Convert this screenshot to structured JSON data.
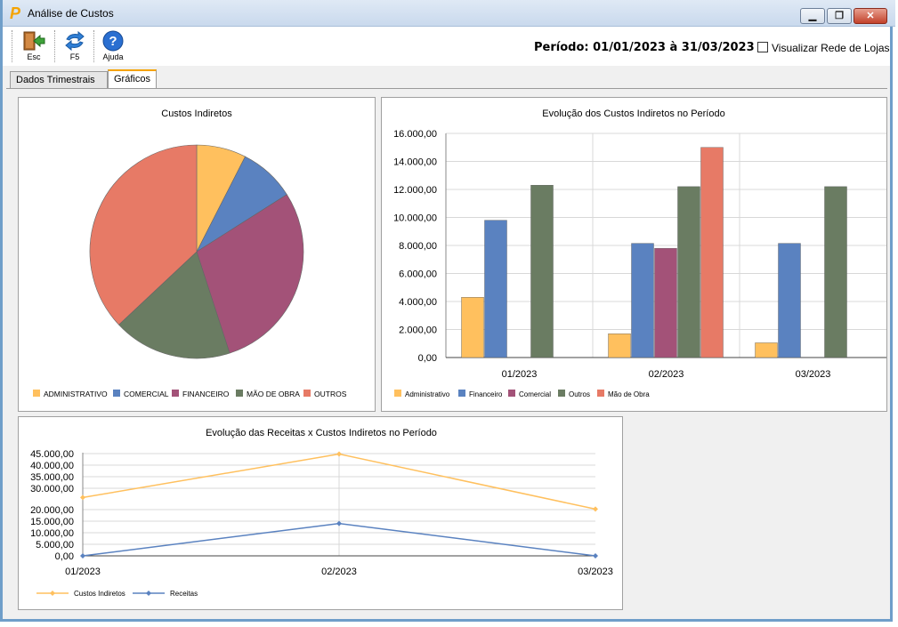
{
  "window": {
    "title": "Análise de Custos",
    "min_symbol": "▁",
    "max_symbol": "❐",
    "close_symbol": "✕"
  },
  "toolbar": {
    "buttons": [
      {
        "label": "Esc",
        "icon": "exit-door-icon"
      },
      {
        "label": "F5",
        "icon": "refresh-icon"
      },
      {
        "label": "Ajuda",
        "icon": "help-icon"
      }
    ],
    "periodo": "Período: 01/01/2023 à 31/03/2023",
    "checkbox_label": "Visualizar Rede de Lojas"
  },
  "tabs": [
    {
      "label": "Dados Trimestrais",
      "active": false
    },
    {
      "label": "Gráficos",
      "active": true
    }
  ],
  "colors": {
    "administrativo": "#ffc05e",
    "comercial": "#5a82c0",
    "financeiro": "#a35278",
    "mao_de_obra": "#6a7c62",
    "outros": "#e77a66"
  },
  "chart_data": [
    {
      "type": "pie",
      "title": "Custos Indiretos",
      "categories": [
        "ADMINISTRATIVO",
        "COMERCIAL",
        "FINANCEIRO",
        "MÃO DE OBRA",
        "OUTROS"
      ],
      "values": [
        7.5,
        8.5,
        29,
        18,
        37
      ],
      "legend_position": "bottom"
    },
    {
      "type": "bar",
      "title": "Evolução dos Custos Indiretos no Período",
      "categories": [
        "01/2023",
        "02/2023",
        "03/2023"
      ],
      "ylim": [
        0,
        16000
      ],
      "yticks": [
        "0,00",
        "2.000,00",
        "4.000,00",
        "6.000,00",
        "8.000,00",
        "10.000,00",
        "12.000,00",
        "14.000,00",
        "16.000,00"
      ],
      "series": [
        {
          "name": "Administrativo",
          "values": [
            4300,
            1700,
            1050
          ]
        },
        {
          "name": "Financeiro",
          "values": [
            9800,
            8150,
            8150
          ]
        },
        {
          "name": "Comercial",
          "values": [
            0,
            7800,
            0
          ]
        },
        {
          "name": "Outros",
          "values": [
            12300,
            12200,
            12200
          ]
        },
        {
          "name": "Mão de Obra",
          "values": [
            0,
            15000,
            0
          ]
        }
      ],
      "legend_position": "bottom"
    },
    {
      "type": "line",
      "title": "Evolução das Receitas x Custos Indiretos no Período",
      "categories": [
        "01/2023",
        "02/2023",
        "03/2023"
      ],
      "yticks": [
        "0,00",
        "5.000,00",
        "10.000,00",
        "15.000,00",
        "20.000,00",
        "30.000,00",
        "35.000,00",
        "40.000,00",
        "45.000,00"
      ],
      "series": [
        {
          "name": "Custos Indiretos",
          "values": [
            26000,
            44800,
            21000
          ]
        },
        {
          "name": "Receitas",
          "values": [
            0,
            14000,
            0
          ]
        }
      ],
      "legend_position": "bottom"
    }
  ]
}
